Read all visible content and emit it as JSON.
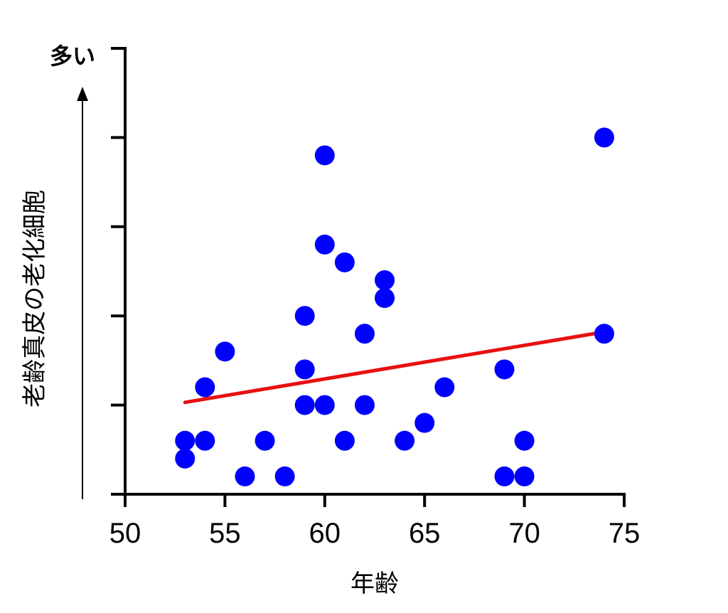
{
  "chart_data": {
    "type": "scatter",
    "xlabel": "年齢",
    "ylabel": "老齢真皮の老化細胞",
    "y_top_label": "多い",
    "xlim": [
      50,
      75
    ],
    "ylim": [
      0,
      5
    ],
    "x_ticks": [
      50,
      55,
      60,
      65,
      70,
      75
    ],
    "x_tick_labels": [
      "50",
      "55",
      "60",
      "65",
      "70",
      "75"
    ],
    "y_ticks": [
      0,
      1,
      2,
      3,
      4,
      5
    ],
    "y_tick_labels_shown": false,
    "grid": false,
    "legend": "none",
    "points": [
      {
        "x": 53,
        "y": 0.6
      },
      {
        "x": 53,
        "y": 0.4
      },
      {
        "x": 54,
        "y": 0.6
      },
      {
        "x": 54,
        "y": 1.2
      },
      {
        "x": 55,
        "y": 1.6
      },
      {
        "x": 56,
        "y": 0.2
      },
      {
        "x": 57,
        "y": 0.6
      },
      {
        "x": 58,
        "y": 0.2
      },
      {
        "x": 59,
        "y": 2.0
      },
      {
        "x": 59,
        "y": 1.4
      },
      {
        "x": 59,
        "y": 1.0
      },
      {
        "x": 60,
        "y": 3.8
      },
      {
        "x": 60,
        "y": 2.8
      },
      {
        "x": 60,
        "y": 1.0
      },
      {
        "x": 61,
        "y": 2.6
      },
      {
        "x": 61,
        "y": 0.6
      },
      {
        "x": 62,
        "y": 1.8
      },
      {
        "x": 62,
        "y": 1.0
      },
      {
        "x": 63,
        "y": 2.4
      },
      {
        "x": 63,
        "y": 2.2
      },
      {
        "x": 64,
        "y": 0.6
      },
      {
        "x": 65,
        "y": 0.8
      },
      {
        "x": 66,
        "y": 1.2
      },
      {
        "x": 69,
        "y": 1.4
      },
      {
        "x": 69,
        "y": 0.2
      },
      {
        "x": 70,
        "y": 0.6
      },
      {
        "x": 70,
        "y": 0.2
      },
      {
        "x": 74,
        "y": 4.0
      },
      {
        "x": 74,
        "y": 1.8
      }
    ],
    "trend_line": {
      "x": [
        53,
        74
      ],
      "y": [
        1.03,
        1.82
      ]
    },
    "colors": {
      "points": "#0000ff",
      "trend_line": "#e81010",
      "axes": "#000000"
    }
  }
}
